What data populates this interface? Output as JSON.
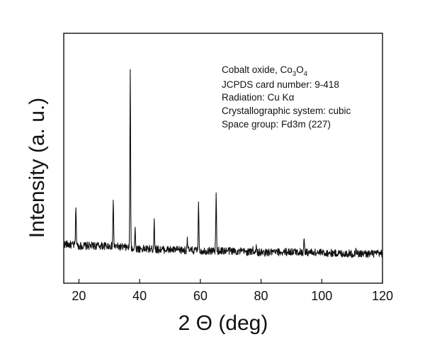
{
  "chart_data": {
    "type": "line",
    "title": "",
    "xlabel": "2 Θ (deg)",
    "ylabel": "Intensity (a. u.)",
    "xlim": [
      15,
      120
    ],
    "ylim": [
      0,
      1
    ],
    "x_ticks": [
      20,
      40,
      60,
      80,
      100,
      120
    ],
    "x_tick_labels": [
      "20",
      "40",
      "60",
      "80",
      "100",
      "120"
    ],
    "y_ticks": [],
    "grid": false,
    "legend": "none",
    "baseline": {
      "points": [
        [
          15,
          0.11
        ],
        [
          20,
          0.1
        ],
        [
          30,
          0.1
        ],
        [
          40,
          0.085
        ],
        [
          50,
          0.08
        ],
        [
          60,
          0.075
        ],
        [
          70,
          0.075
        ],
        [
          80,
          0.065
        ],
        [
          90,
          0.07
        ],
        [
          100,
          0.065
        ],
        [
          110,
          0.06
        ],
        [
          120,
          0.06
        ]
      ],
      "noise": 0.02
    },
    "peaks": [
      {
        "two_theta": 19.0,
        "intensity": 0.21
      },
      {
        "two_theta": 31.3,
        "intensity": 0.24
      },
      {
        "two_theta": 36.9,
        "intensity": 0.92
      },
      {
        "two_theta": 38.5,
        "intensity": 0.1
      },
      {
        "two_theta": 44.8,
        "intensity": 0.16
      },
      {
        "two_theta": 55.7,
        "intensity": 0.07
      },
      {
        "two_theta": 59.4,
        "intensity": 0.26
      },
      {
        "two_theta": 65.2,
        "intensity": 0.3
      },
      {
        "two_theta": 77.3,
        "intensity": 0.03
      },
      {
        "two_theta": 78.4,
        "intensity": 0.03
      },
      {
        "two_theta": 94.2,
        "intensity": 0.07
      },
      {
        "two_theta": 111.3,
        "intensity": 0.04
      }
    ],
    "annotation": {
      "compound_label": "Cobalt oxide, Co",
      "formula_sub1": "3",
      "formula_o": "O",
      "formula_sub2": "4",
      "jcpds": "JCPDS card number: 9-418",
      "radiation_label": "Radiation: Cu K",
      "radiation_symbol": "α",
      "crystal_system": "Crystallographic system: cubic",
      "space_group": "Space group: Fd3m (227)"
    }
  }
}
